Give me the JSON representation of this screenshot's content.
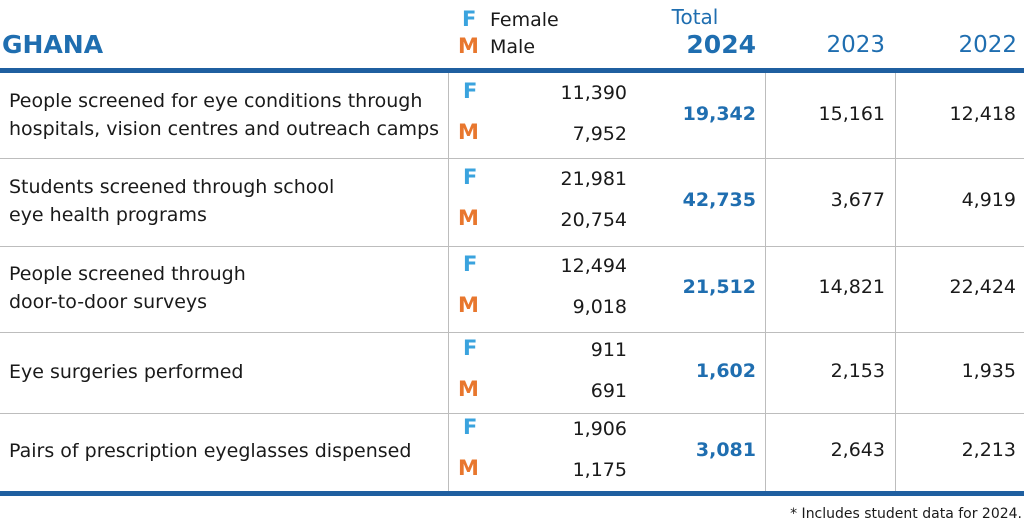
{
  "header": {
    "title": "GHANA",
    "legend": {
      "female": {
        "letter": "F",
        "label": "Female"
      },
      "male": {
        "letter": "M",
        "label": "Male"
      }
    },
    "total": "Total",
    "years": [
      "2024",
      "2023",
      "2022"
    ]
  },
  "table": {
    "rows": [
      {
        "label": [
          "People screened for eye conditions through",
          "hospitals, vision centres and outreach camps"
        ],
        "female": "11,390",
        "male": "7,952",
        "total": "19,342",
        "y2023": "15,161",
        "y2022": "12,418"
      },
      {
        "label": [
          "Students screened through school",
          "eye health programs"
        ],
        "female": "21,981",
        "male": "20,754",
        "total": "42,735",
        "y2023": "3,677",
        "y2022": "4,919"
      },
      {
        "label": [
          "People screened through",
          "door-to-door surveys"
        ],
        "female": "12,494",
        "male": "9,018",
        "total": "21,512",
        "y2023": "14,821",
        "y2022": "22,424"
      },
      {
        "label": [
          "Eye surgeries performed"
        ],
        "female": "911",
        "male": "691",
        "total": "1,602",
        "y2023": "2,153",
        "y2022": "1,935"
      },
      {
        "label": [
          "Pairs of prescription eyeglasses dispensed"
        ],
        "female": "1,906",
        "male": "1,175",
        "total": "3,081",
        "y2023": "2,643",
        "y2022": "2,213"
      }
    ]
  },
  "footnote": "* Includes student data for 2024."
}
